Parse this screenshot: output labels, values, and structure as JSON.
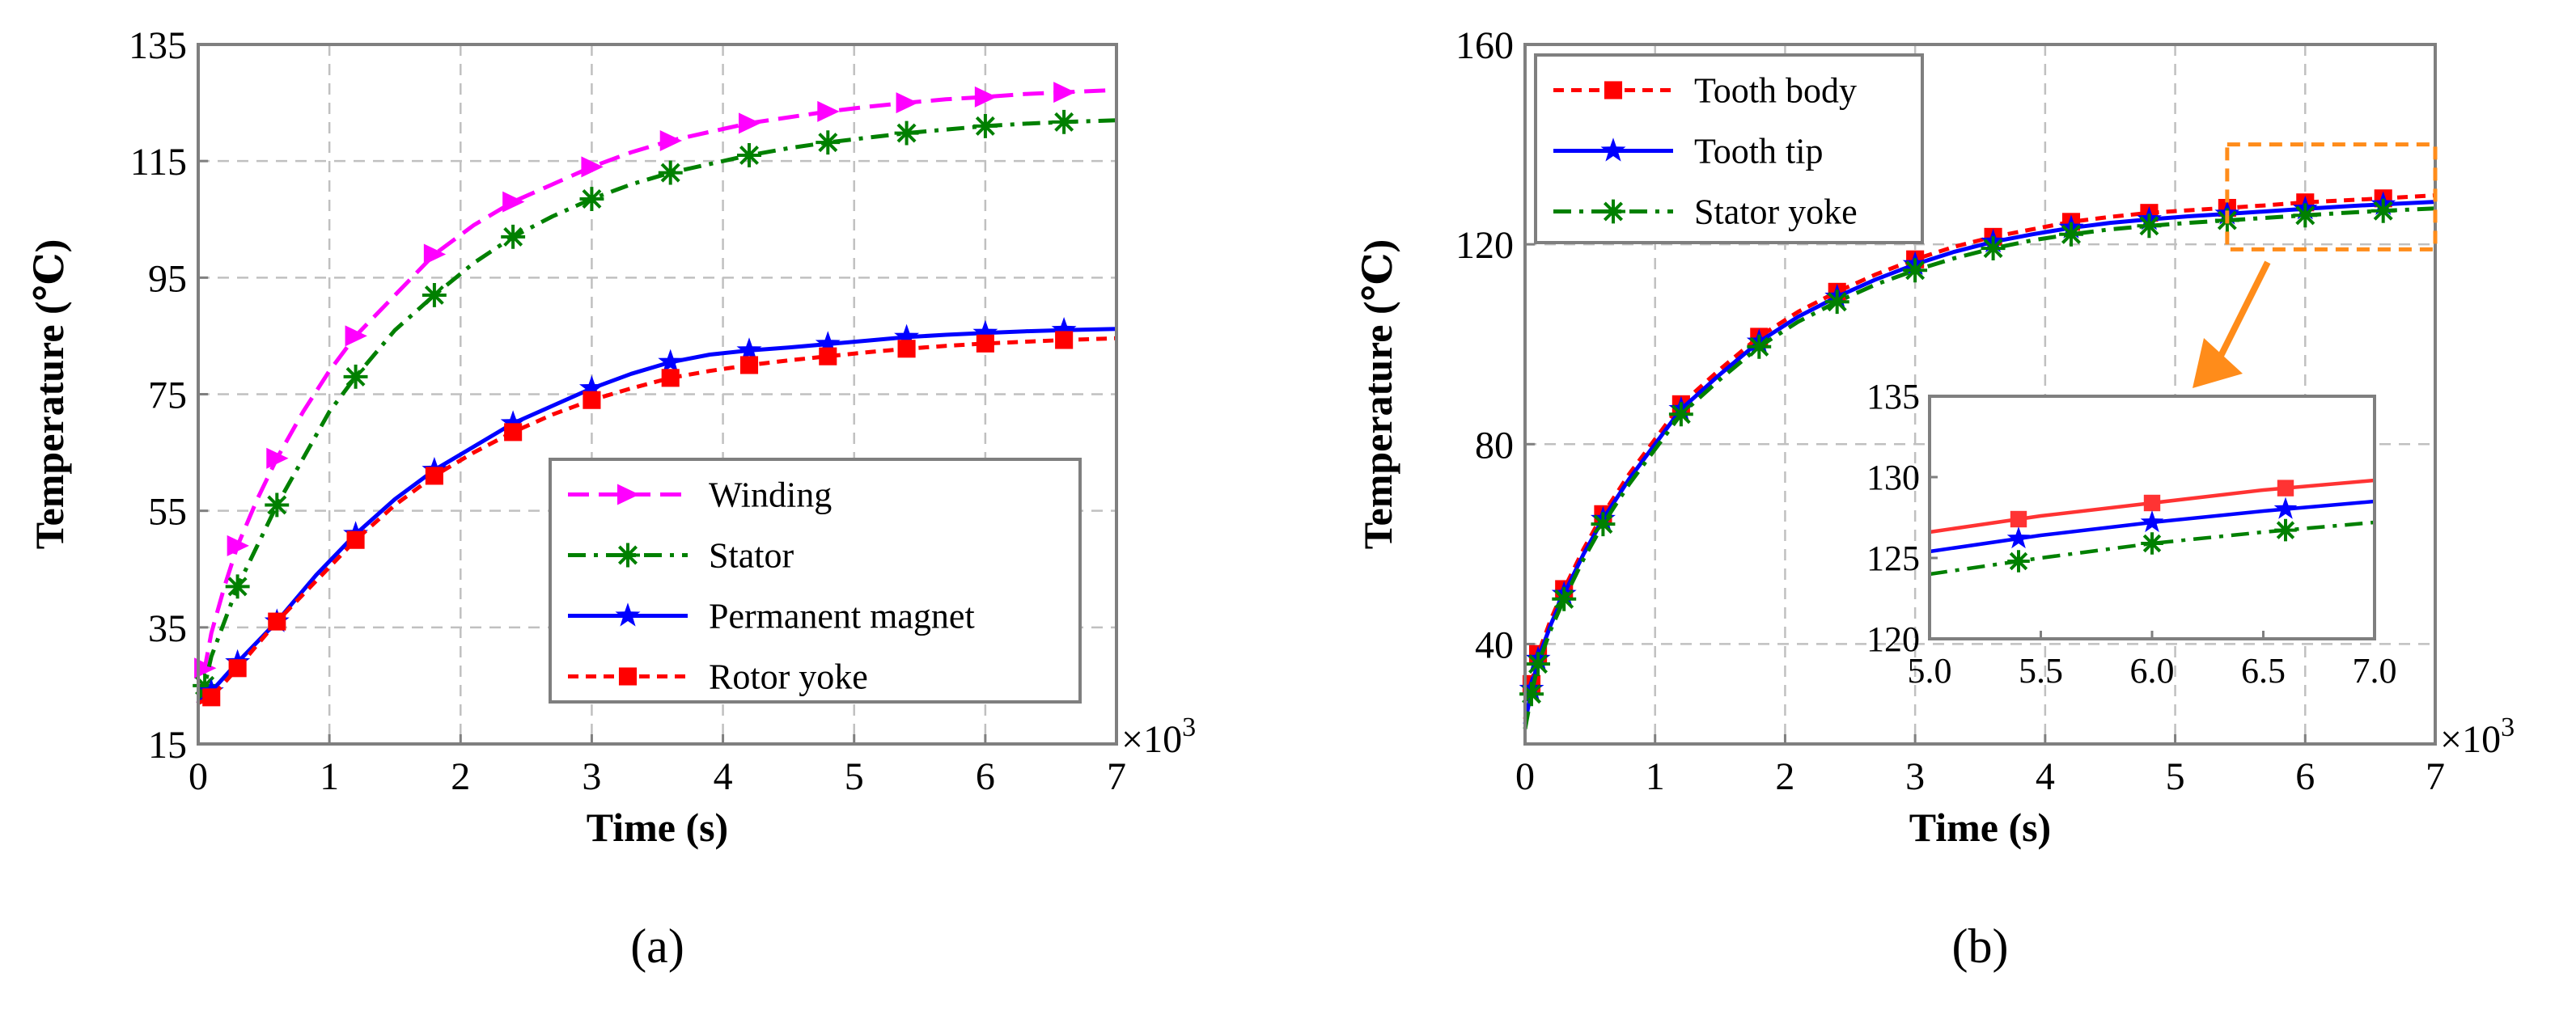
{
  "chart_data": [
    {
      "type": "line",
      "panel_label": "(a)",
      "xlabel": "Time (s)",
      "ylabel": "Temperature (℃)",
      "x_multiplier_label": "×10",
      "x_multiplier_exp": "3",
      "xlim": [
        0,
        7
      ],
      "ylim": [
        15,
        135
      ],
      "xticks": [
        0,
        1,
        2,
        3,
        4,
        5,
        6,
        7
      ],
      "xtick_labels": [
        "0",
        "1",
        "2",
        "3",
        "4",
        "5",
        "6",
        "7"
      ],
      "yticks": [
        15,
        35,
        55,
        75,
        95,
        115,
        135
      ],
      "ytick_labels": [
        "15",
        "35",
        "55",
        "75",
        "95",
        "115",
        "135"
      ],
      "grid": true,
      "legend_position": "bottom-right",
      "series": [
        {
          "name": "Winding",
          "color": "#ff00ff",
          "dash": "dash",
          "marker": "triangle-right",
          "x": [
            0,
            0.05,
            0.1,
            0.2,
            0.3,
            0.45,
            0.6,
            0.8,
            1.0,
            1.2,
            1.5,
            1.8,
            2.1,
            2.4,
            2.7,
            3.0,
            3.3,
            3.6,
            4.0,
            4.2,
            4.5,
            4.8,
            5.1,
            5.4,
            5.7,
            6.0,
            6.3,
            6.6,
            7.0
          ],
          "y": [
            22,
            28,
            34,
            42,
            49,
            57,
            64,
            72,
            79,
            85,
            92,
            99,
            104,
            108,
            111,
            114,
            116.5,
            118.5,
            120.5,
            121.5,
            122.5,
            123.5,
            124.3,
            125,
            125.6,
            126,
            126.5,
            126.8,
            127.2
          ],
          "marker_x": [
            0.05,
            0.3,
            0.6,
            1.2,
            1.8,
            2.4,
            3.0,
            3.6,
            4.2,
            4.8,
            5.4,
            6.0,
            6.6
          ]
        },
        {
          "name": "Stator",
          "color": "#008000",
          "dash": "dashdot",
          "marker": "asterisk",
          "x": [
            0,
            0.05,
            0.1,
            0.2,
            0.3,
            0.45,
            0.6,
            0.8,
            1.0,
            1.2,
            1.5,
            1.8,
            2.1,
            2.4,
            2.7,
            3.0,
            3.3,
            3.6,
            4.0,
            4.2,
            4.5,
            4.8,
            5.1,
            5.4,
            5.7,
            6.0,
            6.3,
            6.6,
            7.0
          ],
          "y": [
            22,
            25,
            30,
            36,
            42,
            49,
            56,
            64,
            72,
            78,
            86,
            92,
            97.5,
            102,
            105.5,
            108.5,
            111,
            113,
            115,
            116,
            117.2,
            118.2,
            119,
            119.8,
            120.4,
            121,
            121.4,
            121.7,
            122
          ],
          "marker_x": [
            0.05,
            0.3,
            0.6,
            1.2,
            1.8,
            2.4,
            3.0,
            3.6,
            4.2,
            4.8,
            5.4,
            6.0,
            6.6
          ]
        },
        {
          "name": "Permanent magnet",
          "color": "#0000ff",
          "dash": "solid",
          "marker": "star",
          "x": [
            0,
            0.1,
            0.3,
            0.6,
            0.9,
            1.2,
            1.5,
            1.8,
            2.1,
            2.4,
            2.7,
            3.0,
            3.3,
            3.6,
            3.9,
            4.2,
            4.5,
            4.8,
            5.1,
            5.4,
            5.7,
            6.0,
            6.3,
            6.6,
            7.0
          ],
          "y": [
            22,
            24,
            29,
            36,
            44,
            51,
            57,
            62,
            66,
            70,
            73,
            76,
            78.5,
            80.5,
            81.8,
            82.5,
            83,
            83.6,
            84.2,
            84.8,
            85.2,
            85.5,
            85.8,
            86,
            86.2
          ],
          "marker_x": [
            0.1,
            0.3,
            0.6,
            1.2,
            1.8,
            2.4,
            3.0,
            3.6,
            4.2,
            4.8,
            5.4,
            6.0,
            6.6
          ]
        },
        {
          "name": "Rotor yoke",
          "color": "#ff0000",
          "dash": "shortdash",
          "marker": "square",
          "x": [
            0,
            0.1,
            0.3,
            0.6,
            0.9,
            1.2,
            1.5,
            1.8,
            2.1,
            2.4,
            2.7,
            3.0,
            3.3,
            3.6,
            3.9,
            4.2,
            4.5,
            4.8,
            5.1,
            5.4,
            5.7,
            6.0,
            6.3,
            6.6,
            7.0
          ],
          "y": [
            22,
            23,
            28,
            36,
            43,
            50,
            56,
            61,
            65,
            68.5,
            71.5,
            74,
            76,
            77.8,
            79,
            80,
            80.8,
            81.5,
            82.2,
            82.8,
            83.3,
            83.7,
            84,
            84.3,
            84.6
          ],
          "marker_x": [
            0.1,
            0.3,
            0.6,
            1.2,
            1.8,
            2.4,
            3.0,
            3.6,
            4.2,
            4.8,
            5.4,
            6.0,
            6.6
          ]
        }
      ]
    },
    {
      "type": "line",
      "panel_label": "(b)",
      "xlabel": "Time (s)",
      "ylabel": "Temperature (℃)",
      "x_multiplier_label": "×10",
      "x_multiplier_exp": "3",
      "xlim": [
        0,
        7
      ],
      "ylim": [
        20,
        160
      ],
      "xticks": [
        0,
        1,
        2,
        3,
        4,
        5,
        6,
        7
      ],
      "xtick_labels": [
        "0",
        "1",
        "2",
        "3",
        "4",
        "5",
        "6",
        "7"
      ],
      "yticks": [
        40,
        80,
        120,
        160
      ],
      "ytick_labels": [
        "40",
        "80",
        "120",
        "160"
      ],
      "grid": true,
      "legend_position": "top-left",
      "series": [
        {
          "name": "Tooth body",
          "color": "#ff0000",
          "dash": "shortdash",
          "marker": "square",
          "x": [
            0,
            0.05,
            0.1,
            0.2,
            0.3,
            0.45,
            0.6,
            0.8,
            1.0,
            1.2,
            1.5,
            1.8,
            2.1,
            2.4,
            2.7,
            3.0,
            3.3,
            3.6,
            3.9,
            4.2,
            4.5,
            4.8,
            5.1,
            5.4,
            5.7,
            6.0,
            6.3,
            6.6,
            7.0
          ],
          "y": [
            25,
            32,
            38,
            45,
            51,
            59,
            66,
            74,
            81,
            88,
            95,
            101.5,
            106.5,
            110.5,
            114,
            117,
            119.5,
            121.5,
            123,
            124.5,
            125.5,
            126.3,
            126.8,
            127.3,
            127.8,
            128.4,
            128.8,
            129.2,
            129.8
          ],
          "marker_x": [
            0.05,
            0.1,
            0.3,
            0.6,
            1.2,
            1.8,
            2.4,
            3.0,
            3.6,
            4.2,
            4.8,
            5.4,
            6.0,
            6.6
          ]
        },
        {
          "name": "Tooth tip",
          "color": "#0000ff",
          "dash": "solid",
          "marker": "star",
          "x": [
            0,
            0.05,
            0.1,
            0.2,
            0.3,
            0.45,
            0.6,
            0.8,
            1.0,
            1.2,
            1.5,
            1.8,
            2.1,
            2.4,
            2.7,
            3.0,
            3.3,
            3.6,
            3.9,
            4.2,
            4.5,
            4.8,
            5.1,
            5.4,
            5.7,
            6.0,
            6.3,
            6.6,
            7.0
          ],
          "y": [
            24,
            31,
            37,
            44,
            50,
            58,
            65,
            73,
            80,
            87,
            94,
            100.5,
            105.5,
            109.5,
            113,
            116,
            118.5,
            120.5,
            122,
            123.3,
            124.3,
            125,
            125.6,
            126.1,
            126.6,
            127.1,
            127.6,
            128,
            128.5
          ],
          "marker_x": [
            0.05,
            0.1,
            0.3,
            0.6,
            1.2,
            1.8,
            2.4,
            3.0,
            3.6,
            4.2,
            4.8,
            5.4,
            6.0,
            6.6
          ]
        },
        {
          "name": "Stator yoke",
          "color": "#008000",
          "dash": "dashdot",
          "marker": "asterisk",
          "x": [
            0,
            0.05,
            0.1,
            0.2,
            0.3,
            0.45,
            0.6,
            0.8,
            1.0,
            1.2,
            1.5,
            1.8,
            2.1,
            2.4,
            2.7,
            3.0,
            3.3,
            3.6,
            3.9,
            4.2,
            4.5,
            4.8,
            5.1,
            5.4,
            5.7,
            6.0,
            6.3,
            6.6,
            7.0
          ],
          "y": [
            23,
            30,
            36,
            43,
            49,
            57,
            64,
            72,
            79,
            86,
            93,
            99.5,
            104.5,
            108.5,
            112,
            114.8,
            117.2,
            119.2,
            120.8,
            122,
            123,
            123.7,
            124.3,
            124.8,
            125.3,
            125.8,
            126.3,
            126.7,
            127.2
          ],
          "marker_x": [
            0.05,
            0.1,
            0.3,
            0.6,
            1.2,
            1.8,
            2.4,
            3.0,
            3.6,
            4.2,
            4.8,
            5.4,
            6.0,
            6.6
          ]
        }
      ],
      "zoom_box": {
        "xlim": [
          5.4,
          7.0
        ],
        "ylim": [
          119,
          140
        ],
        "color": "#ff8c1a"
      },
      "inset": {
        "xlim": [
          5.0,
          7.0
        ],
        "ylim": [
          120,
          135
        ],
        "xticks": [
          5.0,
          5.5,
          6.0,
          6.5,
          7.0
        ],
        "xtick_labels": [
          "5.0",
          "5.5",
          "6.0",
          "6.5",
          "7.0"
        ],
        "yticks": [
          120,
          125,
          130,
          135
        ],
        "ytick_labels": [
          "120",
          "125",
          "130",
          "135"
        ],
        "series": [
          {
            "name": "Tooth body",
            "color": "#ff3333",
            "marker": "square",
            "x": [
              5.0,
              5.5,
              6.0,
              6.5,
              7.0
            ],
            "y": [
              126.6,
              127.6,
              128.4,
              129.2,
              129.8
            ],
            "marker_x": [
              5.4,
              6.0,
              6.6
            ]
          },
          {
            "name": "Tooth tip",
            "color": "#0000ff",
            "marker": "star",
            "x": [
              5.0,
              5.5,
              6.0,
              6.5,
              7.0
            ],
            "y": [
              125.4,
              126.4,
              127.2,
              127.9,
              128.5
            ],
            "marker_x": [
              5.4,
              6.0,
              6.6
            ]
          },
          {
            "name": "Stator yoke",
            "color": "#008000",
            "marker": "asterisk",
            "x": [
              5.0,
              5.5,
              6.0,
              6.5,
              7.0
            ],
            "y": [
              124.0,
              125.0,
              125.9,
              126.6,
              127.2
            ],
            "marker_x": [
              5.4,
              6.0,
              6.6
            ]
          }
        ]
      }
    }
  ]
}
